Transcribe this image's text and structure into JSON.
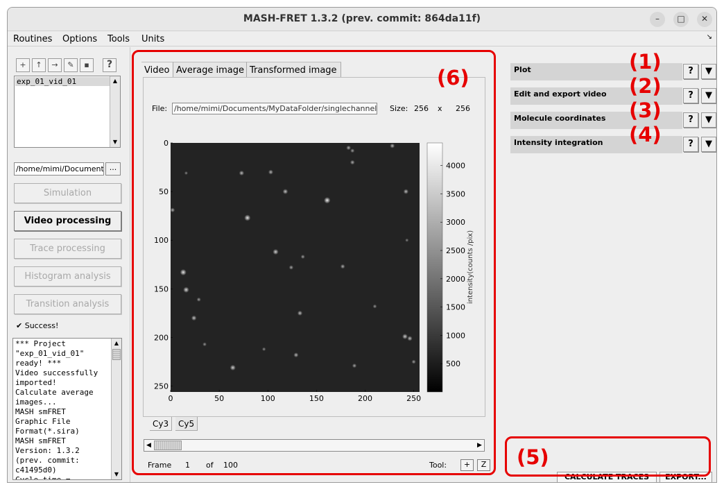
{
  "window": {
    "title": "MASH-FRET 1.3.2 (prev. commit: 864da11f)",
    "minimize": "–",
    "maximize": "□",
    "close": "✕"
  },
  "menubar": {
    "items": [
      "Routines",
      "Options",
      "Tools",
      "Units"
    ],
    "corner": "↘"
  },
  "left": {
    "toolbar_icons": [
      "new-project-icon",
      "open-project-icon",
      "import-icon",
      "edit-icon",
      "save-icon",
      "help-icon"
    ],
    "toolbar_glyphs": [
      "+",
      "↑",
      "→",
      "✎",
      "▪",
      "?"
    ],
    "project_list": [
      "exp_01_vid_01"
    ],
    "path": "/home/mimi/Documents/MyDataFolder",
    "browse": "...",
    "modules": [
      "Simulation",
      "Video processing",
      "Trace processing",
      "Histogram analysis",
      "Transition analysis"
    ],
    "active_module": "Video processing",
    "status": "✔  Success!",
    "log": "*** Project\n\"exp_01_vid_01\"\nready! ***\nVideo successfully\nimported!\nCalculate average\nimages...\nMASH smFRET\nGraphic File\nFormat(*.sira)\nMASH smFRET\nVersion: 1.3.2\n(prev. commit:\nc41495d0)\nCycle time ="
  },
  "center": {
    "tabs": [
      "Video",
      "Average image",
      "Transformed image"
    ],
    "active_tab": "Video",
    "file_label": "File:",
    "file_path": "/home/mimi/Documents/MyDataFolder/singlechannel",
    "size_label": "Size:",
    "size_w": "256",
    "size_x": "x",
    "size_h": "256",
    "channel_tabs": [
      "Cy3",
      "Cy5"
    ],
    "frame_label": "Frame",
    "frame_value": "1",
    "of_label": "of",
    "frame_total": "100",
    "tool_label": "Tool:",
    "tool_buttons": [
      "+",
      "Z"
    ]
  },
  "chart_data": {
    "type": "heatmap",
    "title": "",
    "xlabel": "",
    "ylabel": "",
    "xlim": [
      0,
      256
    ],
    "ylim": [
      256,
      0
    ],
    "xticks": [
      0,
      50,
      100,
      150,
      200,
      250
    ],
    "yticks": [
      0,
      50,
      100,
      150,
      200,
      250
    ],
    "colorbar": {
      "label": "intensity(counts /pix)",
      "ticks": [
        4000,
        3500,
        3000,
        2500,
        2000,
        1500,
        1000,
        500
      ],
      "range": [
        0,
        4400
      ]
    },
    "colormap": "gray",
    "spots": [
      {
        "x": 73,
        "y": 31,
        "i": 0.55
      },
      {
        "x": 103,
        "y": 30,
        "i": 0.5
      },
      {
        "x": 183,
        "y": 5,
        "i": 0.45
      },
      {
        "x": 187,
        "y": 8,
        "i": 0.35
      },
      {
        "x": 228,
        "y": 3,
        "i": 0.5
      },
      {
        "x": 187,
        "y": 20,
        "i": 0.45
      },
      {
        "x": 118,
        "y": 50,
        "i": 0.6
      },
      {
        "x": 161,
        "y": 59,
        "i": 0.9
      },
      {
        "x": 242,
        "y": 50,
        "i": 0.55
      },
      {
        "x": 2,
        "y": 69,
        "i": 0.45
      },
      {
        "x": 79,
        "y": 77,
        "i": 0.85
      },
      {
        "x": 108,
        "y": 112,
        "i": 0.7
      },
      {
        "x": 136,
        "y": 117,
        "i": 0.35
      },
      {
        "x": 124,
        "y": 128,
        "i": 0.4
      },
      {
        "x": 177,
        "y": 127,
        "i": 0.45
      },
      {
        "x": 13,
        "y": 133,
        "i": 0.85
      },
      {
        "x": 16,
        "y": 151,
        "i": 0.75
      },
      {
        "x": 29,
        "y": 161,
        "i": 0.35
      },
      {
        "x": 133,
        "y": 175,
        "i": 0.55
      },
      {
        "x": 210,
        "y": 168,
        "i": 0.3
      },
      {
        "x": 24,
        "y": 180,
        "i": 0.6
      },
      {
        "x": 241,
        "y": 199,
        "i": 0.65
      },
      {
        "x": 246,
        "y": 201,
        "i": 0.55
      },
      {
        "x": 35,
        "y": 207,
        "i": 0.3
      },
      {
        "x": 96,
        "y": 212,
        "i": 0.25
      },
      {
        "x": 129,
        "y": 218,
        "i": 0.5
      },
      {
        "x": 64,
        "y": 231,
        "i": 0.7
      },
      {
        "x": 189,
        "y": 229,
        "i": 0.4
      },
      {
        "x": 250,
        "y": 225,
        "i": 0.35
      },
      {
        "x": 243,
        "y": 100,
        "i": 0.2
      },
      {
        "x": 16,
        "y": 31,
        "i": 0.2
      }
    ]
  },
  "right": {
    "sections": [
      "Plot",
      "Edit and export video",
      "Molecule coordinates",
      "Intensity integration"
    ],
    "help": "?",
    "dropdown": "▼",
    "calculate_button": "CALCULATE TRACES",
    "export_button": "EXPORT..."
  },
  "annotations": [
    "(1)",
    "(2)",
    "(3)",
    "(4)",
    "(5)",
    "(6)"
  ],
  "colors": {
    "annotation": "#e60000",
    "window_bg": "#eeeeee",
    "section_bg": "#d4d4d4",
    "plot_bg": "#232323"
  }
}
